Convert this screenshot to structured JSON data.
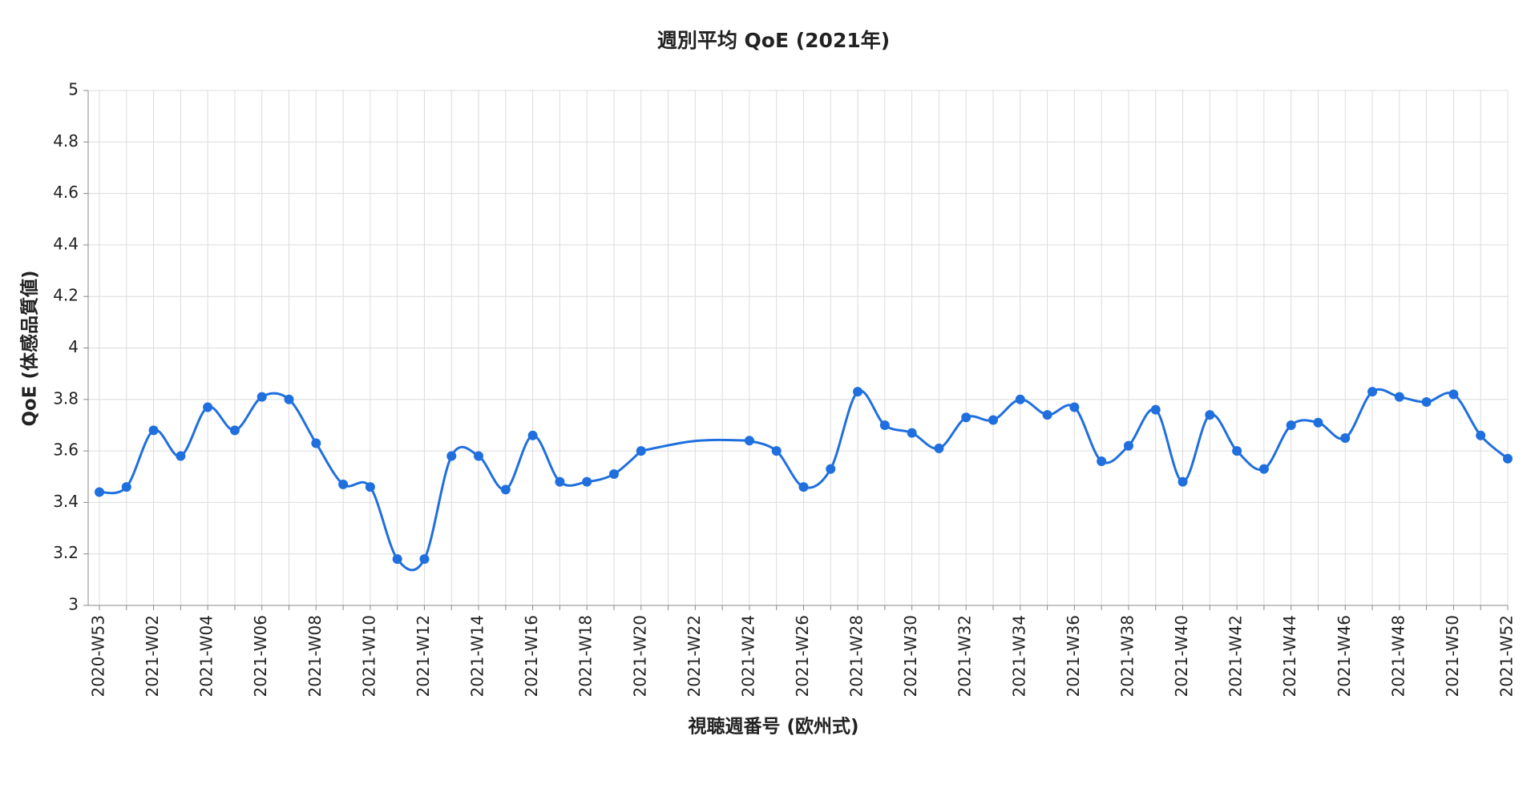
{
  "chart_data": {
    "type": "line",
    "title": "週別平均 QoE (2021年)",
    "x_label": "視聴週番号 (欧州式)",
    "y_label": "QoE (体感品質値)",
    "categories": [
      "2020-W53",
      null,
      "2021-W02",
      null,
      "2021-W04",
      null,
      "2021-W06",
      null,
      "2021-W08",
      null,
      "2021-W10",
      null,
      "2021-W12",
      null,
      "2021-W14",
      null,
      "2021-W16",
      null,
      "2021-W18",
      null,
      "2021-W20",
      null,
      "2021-W22",
      null,
      "2021-W24",
      null,
      "2021-W26",
      null,
      "2021-W28",
      null,
      "2021-W30",
      null,
      "2021-W32",
      null,
      "2021-W34",
      null,
      "2021-W36",
      null,
      "2021-W38",
      null,
      "2021-W40",
      null,
      "2021-W42",
      null,
      "2021-W44",
      null,
      "2021-W46",
      null,
      "2021-W48",
      null,
      "2021-W50",
      null,
      "2021-W52"
    ],
    "series": [
      {
        "name": "QoE",
        "color": "#1f6fde",
        "values": [
          3.44,
          3.46,
          3.68,
          3.58,
          3.77,
          3.68,
          3.81,
          3.8,
          3.63,
          3.47,
          3.46,
          3.18,
          3.18,
          3.58,
          3.58,
          3.45,
          3.66,
          3.48,
          3.48,
          3.51,
          3.6,
          null,
          null,
          null,
          3.64,
          3.6,
          3.46,
          3.53,
          3.83,
          3.7,
          3.67,
          3.61,
          3.73,
          3.72,
          3.8,
          3.74,
          3.77,
          3.56,
          3.62,
          3.76,
          3.48,
          3.74,
          3.6,
          3.53,
          3.7,
          3.71,
          3.65,
          3.83,
          3.81,
          3.79,
          3.82,
          3.66,
          3.57
        ]
      }
    ],
    "ylim": [
      3,
      5
    ],
    "yticks": [
      3,
      3.2,
      3.4,
      3.6,
      3.8,
      4,
      4.2,
      4.4,
      4.6,
      4.8,
      5
    ],
    "grid": true
  }
}
